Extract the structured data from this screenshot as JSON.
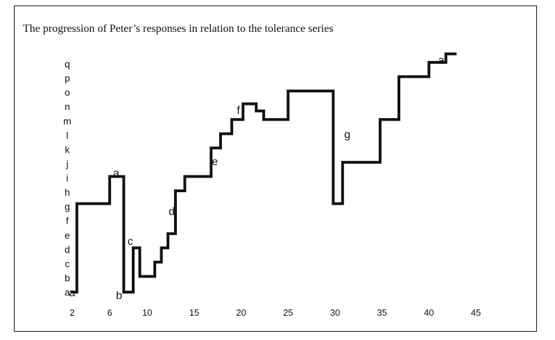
{
  "title": "The progression of Peter’s responses in relation to the tolerance series",
  "chart_data": {
    "type": "line",
    "step": true,
    "title": "The progression of Peter’s responses in relation to the tolerance series",
    "xlabel": "",
    "ylabel": "",
    "x_ticks": [
      2,
      6,
      10,
      15,
      20,
      25,
      30,
      35,
      40,
      45
    ],
    "y_categories": [
      "a",
      "b",
      "c",
      "d",
      "e",
      "f",
      "g",
      "h",
      "i",
      "j",
      "k",
      "l",
      "m",
      "n",
      "o",
      "p",
      "q"
    ],
    "y_tick_labels": [
      "a",
      "b",
      "c",
      "d",
      "e",
      "f",
      "g",
      "h",
      "i",
      "j",
      "k",
      "l",
      "m",
      "n",
      "o",
      "p",
      "q"
    ],
    "x_range": [
      2,
      45
    ],
    "y_range": [
      0,
      16
    ],
    "grid": false,
    "series": [
      {
        "values": [
          [
            2,
            0
          ],
          [
            2.5,
            0
          ],
          [
            2.5,
            6.2
          ],
          [
            6,
            6.2
          ],
          [
            6,
            8.1
          ],
          [
            7.5,
            8.1
          ],
          [
            7.5,
            0
          ],
          [
            8.5,
            0
          ],
          [
            8.5,
            3.1
          ],
          [
            9.2,
            3.1
          ],
          [
            9.2,
            1.1
          ],
          [
            10.8,
            1.1
          ],
          [
            10.8,
            2.1
          ],
          [
            11.5,
            2.1
          ],
          [
            11.5,
            3.1
          ],
          [
            12.2,
            3.1
          ],
          [
            12.2,
            4.1
          ],
          [
            13,
            4.1
          ],
          [
            13,
            7.1
          ],
          [
            14,
            7.1
          ],
          [
            14,
            8.1
          ],
          [
            16.8,
            8.1
          ],
          [
            16.8,
            10.1
          ],
          [
            17.8,
            10.1
          ],
          [
            17.8,
            11.1
          ],
          [
            19,
            11.1
          ],
          [
            19,
            12.1
          ],
          [
            20.2,
            12.1
          ],
          [
            20.2,
            13.2
          ],
          [
            21.6,
            13.2
          ],
          [
            21.6,
            12.7
          ],
          [
            22.4,
            12.7
          ],
          [
            22.4,
            12.1
          ],
          [
            25,
            12.1
          ],
          [
            25,
            14.1
          ],
          [
            29.8,
            14.1
          ],
          [
            29.8,
            6.2
          ],
          [
            30.8,
            6.2
          ],
          [
            30.8,
            9.1
          ],
          [
            34.8,
            9.1
          ],
          [
            34.8,
            12.1
          ],
          [
            36.8,
            12.1
          ],
          [
            36.8,
            15.1
          ],
          [
            40,
            15.1
          ],
          [
            40,
            16.1
          ],
          [
            41.8,
            16.1
          ],
          [
            41.8,
            16.7
          ],
          [
            42.8,
            16.7
          ]
        ]
      }
    ],
    "annotations": [
      {
        "label": "a",
        "x": 2,
        "y": 0
      },
      {
        "label": "a",
        "x": 6.7,
        "y": 8.4
      },
      {
        "label": "b",
        "x": 7.0,
        "y": -0.2
      },
      {
        "label": "c",
        "x": 8.2,
        "y": 3.6
      },
      {
        "label": "d",
        "x": 12.6,
        "y": 5.7
      },
      {
        "label": "e",
        "x": 17.2,
        "y": 9.2
      },
      {
        "label": "f",
        "x": 19.7,
        "y": 12.8
      },
      {
        "label": "g",
        "x": 31.3,
        "y": 11.1
      },
      {
        "label": "a",
        "x": 41.3,
        "y": 16.3
      }
    ]
  }
}
